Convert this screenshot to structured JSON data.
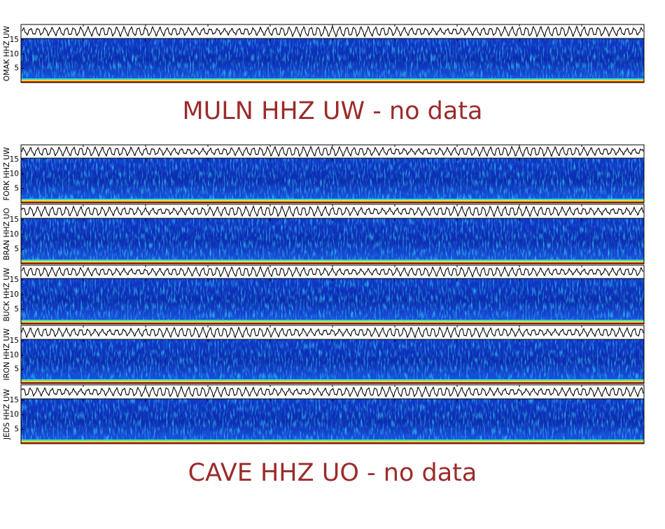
{
  "panels": [
    {
      "label": "OMAK HHZ UW",
      "yticks": [
        5,
        10,
        15
      ]
    },
    {
      "label": "FORK HHZ UW",
      "yticks": [
        5,
        10,
        15
      ]
    },
    {
      "label": "BRAN HHZ UO",
      "yticks": [
        5,
        10,
        15
      ]
    },
    {
      "label": "BUCK HHZ UW",
      "yticks": [
        5,
        10,
        15
      ]
    },
    {
      "label": "IRON HHZ UW",
      "yticks": [
        5,
        10,
        15
      ]
    },
    {
      "label": "JEDS HHZ UW",
      "yticks": [
        5,
        10,
        15
      ]
    }
  ],
  "ylim": [
    0,
    15.5
  ],
  "messages": [
    "MULN HHZ UW - no data",
    "CAVE HHZ UO - no data"
  ]
}
